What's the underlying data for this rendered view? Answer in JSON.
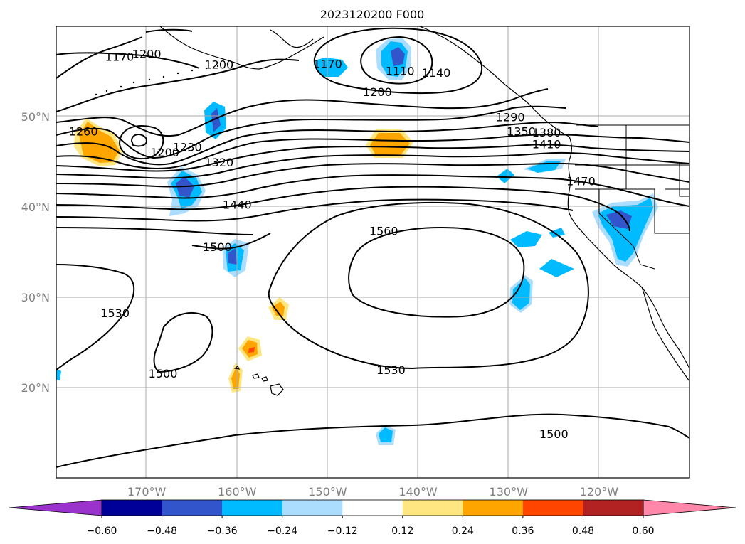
{
  "title": "2023120200 F000",
  "map": {
    "lon_range": [
      -180,
      -110
    ],
    "lat_range": [
      10,
      60
    ],
    "lon_ticks": [
      {
        "lon": -170,
        "label": "170°W"
      },
      {
        "lon": -160,
        "label": "160°W"
      },
      {
        "lon": -150,
        "label": "150°W"
      },
      {
        "lon": -140,
        "label": "140°W"
      },
      {
        "lon": -130,
        "label": "130°W"
      },
      {
        "lon": -120,
        "label": "120°W"
      }
    ],
    "lat_ticks": [
      {
        "lat": 50,
        "label": "50°N"
      },
      {
        "lat": 40,
        "label": "40°N"
      },
      {
        "lat": 30,
        "label": "30°N"
      },
      {
        "lat": 20,
        "label": "20°N"
      }
    ],
    "contour_labels": [
      {
        "text": "1170",
        "lon": -173,
        "lat": 56.2
      },
      {
        "text": "1200",
        "lon": -170,
        "lat": 56.5
      },
      {
        "text": "1200",
        "lon": -162,
        "lat": 55.3
      },
      {
        "text": "1170",
        "lon": -150,
        "lat": 55.4
      },
      {
        "text": "1110",
        "lon": -142,
        "lat": 54.6
      },
      {
        "text": "1140",
        "lon": -138,
        "lat": 54.4
      },
      {
        "text": "1200",
        "lon": -144.5,
        "lat": 52.3
      },
      {
        "text": "1260",
        "lon": -177,
        "lat": 47.9
      },
      {
        "text": "1200",
        "lon": -168,
        "lat": 45.6
      },
      {
        "text": "1230",
        "lon": -165.5,
        "lat": 46.2
      },
      {
        "text": "1320",
        "lon": -162,
        "lat": 44.5
      },
      {
        "text": "1290",
        "lon": -129.8,
        "lat": 49.5
      },
      {
        "text": "1350",
        "lon": -128.6,
        "lat": 47.9
      },
      {
        "text": "1380",
        "lon": -125.8,
        "lat": 47.8
      },
      {
        "text": "1410",
        "lon": -125.8,
        "lat": 46.5
      },
      {
        "text": "1440",
        "lon": -160,
        "lat": 39.8
      },
      {
        "text": "1470",
        "lon": -122,
        "lat": 42.4
      },
      {
        "text": "1500",
        "lon": -162.2,
        "lat": 35.1
      },
      {
        "text": "1560",
        "lon": -143.8,
        "lat": 36.9
      },
      {
        "text": "1530",
        "lon": -173.5,
        "lat": 27.8
      },
      {
        "text": "1500",
        "lon": -168.2,
        "lat": 21.1
      },
      {
        "text": "1530",
        "lon": -143,
        "lat": 21.5
      },
      {
        "text": "1500",
        "lon": -125,
        "lat": 14.4
      }
    ]
  },
  "colorbar": {
    "ticks": [
      "−0.60",
      "−0.48",
      "−0.36",
      "−0.24",
      "−0.12",
      "0.12",
      "0.24",
      "0.36",
      "0.48",
      "0.60"
    ],
    "colors": [
      "#9933cc",
      "#000099",
      "#3355cc",
      "#00bbff",
      "#aaddff",
      "#ffffff",
      "#ffe680",
      "#ffa500",
      "#ff4500",
      "#b22222",
      "#ff88aa"
    ]
  }
}
